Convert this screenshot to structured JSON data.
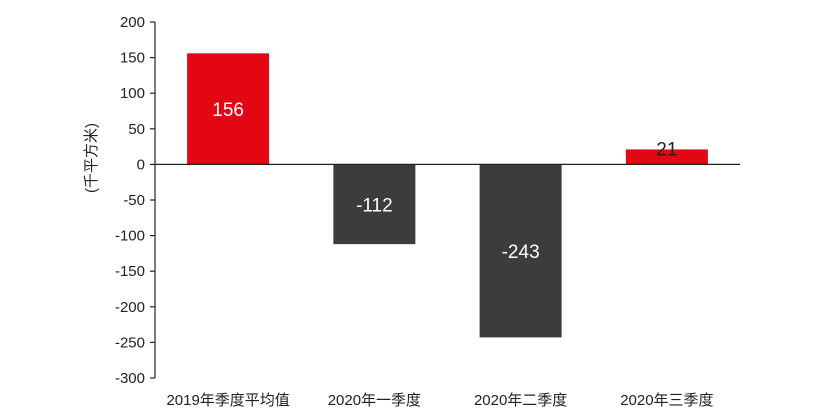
{
  "chart_data": {
    "type": "bar",
    "title": "",
    "xlabel": "",
    "ylabel": "(千平方米)",
    "categories": [
      "2019年季度平均值",
      "2020年一季度",
      "2020年二季度",
      "2020年三季度"
    ],
    "values": [
      156,
      -112,
      -243,
      21
    ],
    "value_labels": [
      "156",
      "-112",
      "-243",
      "21"
    ],
    "bar_colors": [
      "#e30613",
      "#3c3c3c",
      "#3c3c3c",
      "#e30613"
    ],
    "label_colors": [
      "#ffffff",
      "#ffffff",
      "#ffffff",
      "#222222"
    ],
    "ylim": [
      -300,
      200
    ],
    "yticks": [
      200,
      150,
      100,
      50,
      0,
      -50,
      -100,
      -150,
      -200,
      -250,
      -300
    ],
    "ytick_labels": [
      "200",
      "150",
      "100",
      "50",
      "0",
      "-50",
      "-100",
      "-150",
      "-200",
      "-250",
      "-300"
    ],
    "grid": false,
    "legend": "none"
  }
}
